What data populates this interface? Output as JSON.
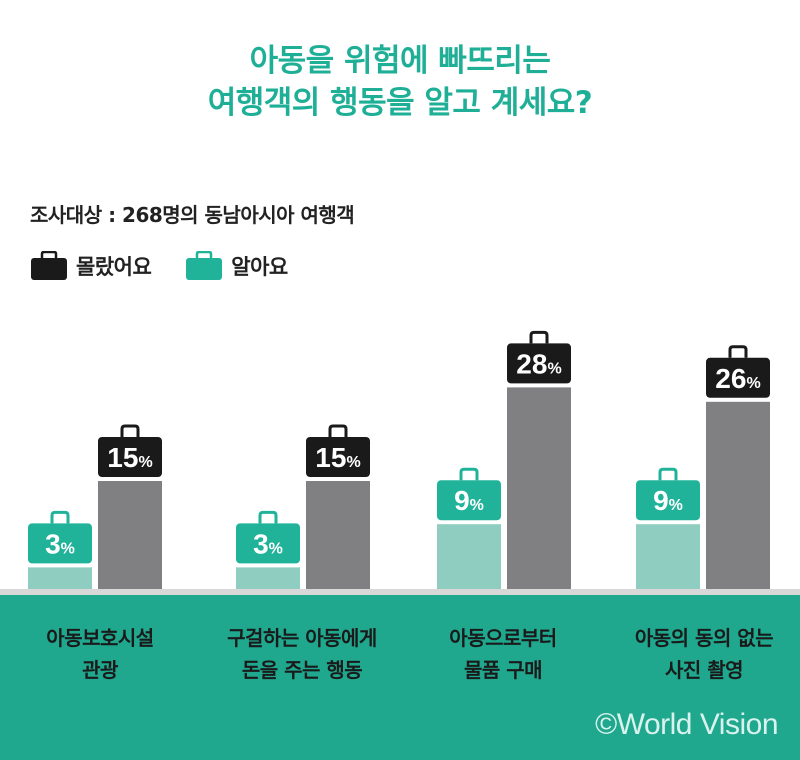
{
  "title_line1": "아동을 위험에 빠뜨리는",
  "title_line2": "여행객의 행동을 알고 계세요?",
  "subtitle": "조사대상 : 268명의 동남아시아 여행객",
  "colors": {
    "accent": "#1faf97",
    "known_bar": "#8ecdbf",
    "unknown_bar": "#808082",
    "band": "#1fa88e"
  },
  "legend": [
    {
      "label": "몰랐어요",
      "color": "#1a1a1a",
      "icon": "briefcase-icon"
    },
    {
      "label": "알아요",
      "color": "#20b39a",
      "icon": "briefcase-icon"
    }
  ],
  "chart_data": {
    "type": "bar",
    "title": "아동을 위험에 빠뜨리는 여행객의 행동을 알고 계세요?",
    "categories": [
      [
        "아동보호시설",
        "관광"
      ],
      [
        "구걸하는 아동에게",
        "돈을 주는 행동"
      ],
      [
        "아동으로부터",
        "물품 구매"
      ],
      [
        "아동의 동의 없는",
        "사진 촬영"
      ]
    ],
    "series": [
      {
        "name": "알아요",
        "values": [
          3,
          3,
          9,
          9
        ]
      },
      {
        "name": "몰랐어요",
        "values": [
          15,
          15,
          28,
          26
        ]
      }
    ],
    "unit": "%",
    "ylim": [
      0,
      30
    ]
  },
  "credit": "©World Vision"
}
